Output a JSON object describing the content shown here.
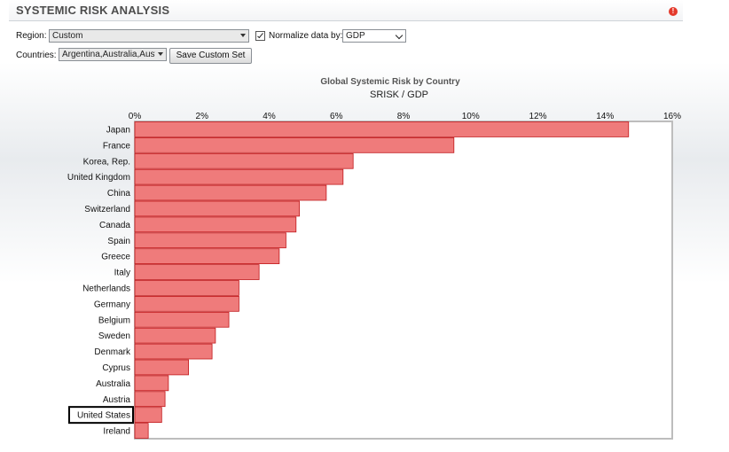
{
  "header": {
    "title": "SYSTEMIC RISK ANALYSIS",
    "info_icon": "info-icon",
    "info_glyph": "!"
  },
  "filters": {
    "region_label": "Region:",
    "region_value": "Custom",
    "normalize_checked": true,
    "normalize_label": "Normalize data by:",
    "normalize_value": "GDP",
    "countries_label": "Countries:",
    "countries_value": "Argentina,Australia,Austri",
    "save_label": "Save Custom Set"
  },
  "colors": {
    "bar_fill": "#ef7b7b",
    "bar_stroke": "#c0191c",
    "axis": "#bdbdbd"
  },
  "chart_data": {
    "type": "bar",
    "orientation": "horizontal",
    "title": "Global Systemic Risk by Country",
    "subtitle": "SRISK / GDP",
    "xlim": [
      0,
      16
    ],
    "xticks": [
      "0%",
      "2%",
      "4%",
      "6%",
      "8%",
      "10%",
      "12%",
      "14%",
      "16%"
    ],
    "x_axis_position": "top",
    "grid": false,
    "highlighted_category": "United States",
    "categories": [
      "Japan",
      "France",
      "Korea, Rep.",
      "United Kingdom",
      "China",
      "Switzerland",
      "Canada",
      "Spain",
      "Greece",
      "Italy",
      "Netherlands",
      "Germany",
      "Belgium",
      "Sweden",
      "Denmark",
      "Cyprus",
      "Australia",
      "Austria",
      "United States",
      "Ireland"
    ],
    "values": [
      14.7,
      9.5,
      6.5,
      6.2,
      5.7,
      4.9,
      4.8,
      4.5,
      4.3,
      3.7,
      3.1,
      3.1,
      2.8,
      2.4,
      2.3,
      1.6,
      1.0,
      0.9,
      0.8,
      0.4
    ]
  }
}
